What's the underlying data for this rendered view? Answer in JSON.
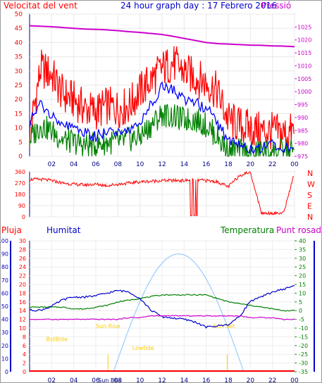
{
  "header": {
    "title": "24 hour graph day : 17 Febrero 2016",
    "left_label": "Velocitat del vent",
    "right_label": "Pressió"
  },
  "colors": {
    "wind": "#ff0000",
    "gust": "#ff0000",
    "avg": "#0000ff",
    "low": "#008000",
    "pressure": "#cc00cc",
    "temperature": "#008000",
    "humidity": "#0000cc",
    "dewpoint": "#cc00cc",
    "rain": "#ff0000",
    "sun": "#99ccff",
    "sunevents": "#ffcc00"
  },
  "x_ticks": [
    "02",
    "04",
    "06",
    "08",
    "10",
    "12",
    "14",
    "16",
    "18",
    "20",
    "22",
    "00"
  ],
  "chart_data": [
    {
      "type": "line",
      "title": "24 hour graph day : 17 Febrero 2016",
      "ylabel": "Velocitat del vent",
      "ylim": [
        0,
        50
      ],
      "y_ticks": [
        "0",
        "5",
        "10",
        "15",
        "20",
        "25",
        "30",
        "35",
        "40",
        "45",
        "50"
      ],
      "y2label": "Pressió",
      "y2lim": [
        975,
        1030
      ],
      "y2_ticks": [
        "975",
        "980",
        "985",
        "990",
        "995",
        "1000",
        "1005",
        "1010",
        "1015",
        "1020",
        "1025"
      ],
      "x": [
        0,
        1,
        2,
        3,
        4,
        5,
        6,
        7,
        8,
        9,
        10,
        11,
        12,
        13,
        14,
        15,
        16,
        17,
        18,
        19,
        20,
        21,
        22,
        23,
        24
      ],
      "series": [
        {
          "key": "gust",
          "values": [
            5,
            28,
            26,
            19,
            17,
            14,
            13,
            15,
            14,
            15,
            20,
            24,
            28,
            30,
            27,
            25,
            23,
            20,
            10,
            8,
            7,
            6,
            6,
            5,
            6
          ]
        },
        {
          "key": "avg",
          "values": [
            12,
            18,
            15,
            11,
            10,
            8,
            7,
            9,
            9,
            9,
            12,
            18,
            25,
            23,
            20,
            19,
            17,
            12,
            5,
            4,
            3,
            3,
            4,
            3,
            4
          ]
        },
        {
          "key": "low",
          "values": [
            5,
            10,
            8,
            5,
            4,
            3,
            3,
            4,
            4,
            5,
            6,
            10,
            14,
            13,
            12,
            12,
            10,
            6,
            1,
            1,
            0,
            1,
            1,
            1,
            1
          ]
        },
        {
          "name": "Pressió",
          "key": "pressure",
          "values": [
            1025.5,
            1025.3,
            1025.1,
            1024.8,
            1024.5,
            1024.2,
            1024.1,
            1023.9,
            1023.6,
            1023.2,
            1022.9,
            1022.5,
            1022.1,
            1021.4,
            1020.6,
            1019.8,
            1019.0,
            1018.6,
            1018.4,
            1018.2,
            1018.0,
            1017.9,
            1017.7,
            1017.6,
            1017.4
          ]
        }
      ]
    },
    {
      "type": "scatter",
      "ylabel": "Direcció",
      "ylim": [
        0,
        360
      ],
      "y_ticks": [
        "0",
        "90",
        "180",
        "270",
        "360"
      ],
      "compass": [
        "N",
        "W",
        "S",
        "E",
        "N"
      ],
      "x": [
        0,
        1,
        2,
        3,
        4,
        5,
        6,
        7,
        8,
        9,
        10,
        11,
        12,
        13,
        14,
        15,
        16,
        17,
        18,
        19,
        20,
        21,
        22,
        23,
        24
      ],
      "series": [
        {
          "key": "direction",
          "values": [
            300,
            300,
            290,
            270,
            260,
            255,
            260,
            250,
            260,
            270,
            280,
            285,
            290,
            290,
            290,
            295,
            290,
            280,
            240,
            330,
            360,
            30,
            30,
            30,
            350
          ]
        }
      ]
    },
    {
      "type": "line",
      "x": [
        0,
        1,
        2,
        3,
        4,
        5,
        6,
        7,
        8,
        9,
        10,
        11,
        12,
        13,
        14,
        15,
        16,
        17,
        18,
        19,
        20,
        21,
        22,
        23,
        24
      ],
      "pluja_label": "Pluja",
      "pluja_ylim": [
        0,
        30
      ],
      "pluja_ticks": [
        "0",
        "2",
        "4",
        "6",
        "8",
        "10",
        "12",
        "14",
        "16",
        "18",
        "20",
        "22",
        "24",
        "26",
        "28",
        "30"
      ],
      "humitat_label": "Humitat",
      "humitat_ylim": [
        0,
        100
      ],
      "humitat_ticks": [
        "0",
        "10",
        "20",
        "30",
        "40",
        "50",
        "60",
        "70",
        "80",
        "90",
        "100"
      ],
      "temperatura_label": "Temperatura",
      "punt_rosada_label": "Punt rosada",
      "temp_ylim": [
        -35,
        40
      ],
      "temp_ticks": [
        "40",
        "35",
        "30",
        "25",
        "20",
        "15",
        "10",
        "5",
        "0",
        "-5",
        "-10",
        "-15",
        "-20",
        "-25",
        "-30",
        "-35"
      ],
      "series": [
        {
          "name": "Temperatura",
          "key": "temperature",
          "values": [
            2,
            2,
            2,
            2,
            1,
            1,
            2,
            3,
            5,
            6,
            7,
            8,
            9,
            9,
            9,
            9,
            9,
            7,
            5,
            4,
            3,
            2,
            1,
            0,
            0
          ]
        },
        {
          "name": "Humitat",
          "key": "humidity",
          "values": [
            47,
            47,
            50,
            55,
            57,
            57,
            58,
            60,
            62,
            61,
            56,
            47,
            42,
            41,
            40,
            38,
            34,
            35,
            36,
            42,
            54,
            57,
            61,
            63,
            66
          ]
        },
        {
          "name": "Punt rosada",
          "key": "dewpoint",
          "values": [
            -5,
            -5,
            -5,
            -5,
            -5,
            -5,
            -5,
            -5,
            -5,
            -4,
            -4,
            -3,
            -3,
            -3,
            -3,
            -3,
            -3,
            -3,
            -3,
            -3,
            -4,
            -4,
            -4,
            -5,
            -5
          ]
        },
        {
          "key": "rain",
          "values": [
            0,
            0,
            0,
            0,
            0,
            0,
            0,
            0,
            0,
            0,
            0,
            0,
            0,
            0,
            0,
            0,
            0,
            0,
            0,
            0,
            0,
            0,
            0,
            0,
            0
          ]
        }
      ],
      "annotations": [
        "BstBlde",
        "Sun Rise",
        "Lowtide",
        "Sun Set",
        "Sun BBs"
      ]
    }
  ]
}
